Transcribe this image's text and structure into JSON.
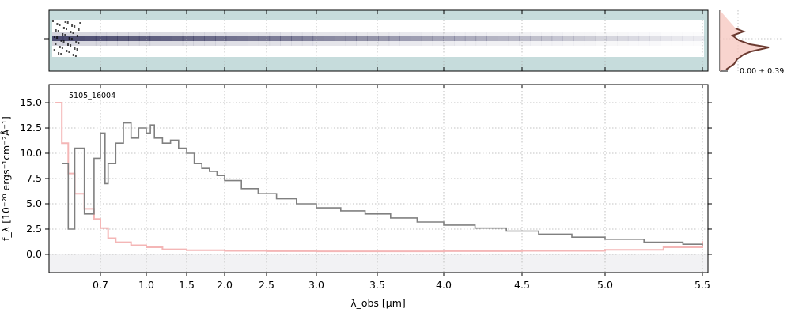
{
  "chart_data": {
    "type": "line",
    "title": "",
    "label": "5105_16004",
    "xlabel": "λ_obs [μm]",
    "ylabel": "f_λ [10⁻²⁰ ergs⁻¹cm⁻²Å⁻¹]",
    "ylim": [
      -1.8,
      16.8
    ],
    "xlim": [
      0.55,
      5.52
    ],
    "x_scale": "nonlinear (spectral pixel)",
    "xticks": [
      "0.7",
      "1.0",
      "1.5",
      "2.0",
      "2.5",
      "3.0",
      "3.5",
      "4.0",
      "4.5",
      "5.0",
      "5.5"
    ],
    "yticks": [
      "0.0",
      "2.5",
      "5.0",
      "7.5",
      "10.0",
      "12.5",
      "15.0"
    ],
    "grid": true,
    "series": [
      {
        "name": "",
        "color": "#808080",
        "style": "steps",
        "x": [
          0.58,
          0.6,
          0.62,
          0.65,
          0.68,
          0.7,
          0.73,
          0.75,
          0.8,
          0.85,
          0.9,
          0.95,
          1.0,
          1.05,
          1.1,
          1.2,
          1.3,
          1.4,
          1.5,
          1.6,
          1.7,
          1.8,
          1.9,
          2.0,
          2.2,
          2.4,
          2.6,
          2.8,
          3.0,
          3.2,
          3.4,
          3.6,
          3.8,
          4.0,
          4.2,
          4.4,
          4.6,
          4.8,
          5.0,
          5.2,
          5.4,
          5.5
        ],
        "y": [
          9.0,
          2.5,
          10.5,
          4.0,
          9.5,
          12.0,
          7.0,
          9.0,
          11.0,
          13.0,
          11.5,
          12.5,
          12.0,
          12.8,
          11.5,
          11.0,
          11.3,
          10.5,
          10.0,
          9.0,
          8.5,
          8.2,
          7.8,
          7.3,
          6.5,
          6.0,
          5.5,
          5.0,
          4.6,
          4.3,
          4.0,
          3.6,
          3.2,
          2.9,
          2.6,
          2.3,
          2.0,
          1.7,
          1.5,
          1.2,
          1.0,
          0.9
        ]
      },
      {
        "name": "",
        "color": "#f4b6b6",
        "style": "steps",
        "x": [
          0.56,
          0.58,
          0.6,
          0.62,
          0.65,
          0.68,
          0.7,
          0.75,
          0.8,
          0.9,
          1.0,
          1.2,
          1.5,
          2.0,
          2.5,
          3.0,
          3.5,
          4.0,
          4.5,
          5.0,
          5.3,
          5.5
        ],
        "y": [
          15.0,
          11.0,
          8.0,
          6.0,
          4.5,
          3.5,
          2.6,
          1.6,
          1.2,
          0.9,
          0.7,
          0.5,
          0.4,
          0.35,
          0.32,
          0.3,
          0.3,
          0.32,
          0.35,
          0.45,
          0.7,
          1.3
        ]
      }
    ],
    "inset": {
      "label": "0.00 ± 0.39",
      "color_line": "#6b3a30",
      "color_fill": "#f6c9c2"
    }
  },
  "colors": {
    "image_bg": "#c6dcdc",
    "band": "#ffffff",
    "trace": "#2a2a55",
    "main_line": "#808080",
    "err_line": "#f4b6b6"
  }
}
